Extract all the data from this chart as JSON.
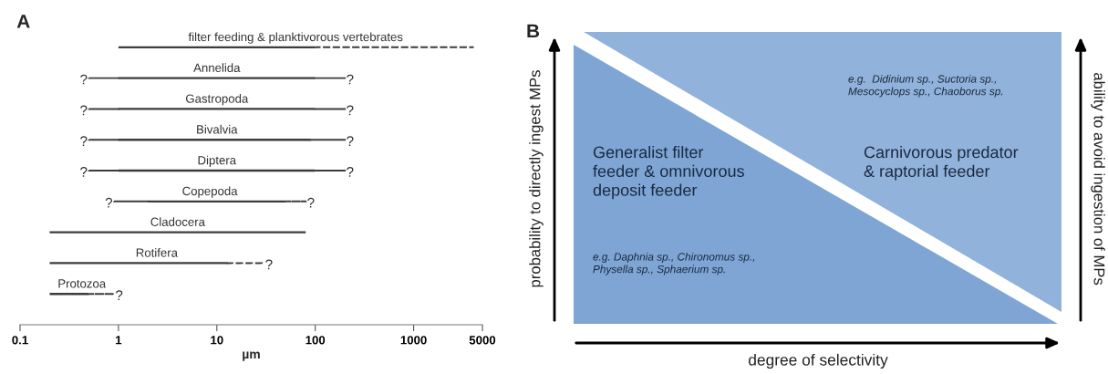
{
  "chart_data": [
    {
      "type": "bar",
      "title": "A",
      "orientation": "horizontal",
      "categories": [
        "filter feeding & planktivorous vertebrates",
        "Annelida",
        "Gastropoda",
        "Bivalvia",
        "Diptera",
        "Copepoda",
        "Cladocera",
        "Rotifera",
        "Protozoa"
      ],
      "xlabel": "µm",
      "log": "x",
      "xlim": [
        0.1,
        5000
      ],
      "xticks": [
        0.1,
        1,
        10,
        100,
        1000,
        5000
      ],
      "tick_labels": "x",
      "series": [
        {
          "color": "#3c3c3c",
          "line_style": "solid",
          "base": [
            1,
            1,
            1,
            1,
            1,
            2,
            0.2,
            0.2,
            0.2
          ],
          "values": [
            99,
            99,
            99,
            89,
            99,
            48,
            79.8,
            12.8,
            0.3
          ]
        },
        {
          "color": "#3c3c3c",
          "line_style": "dashed",
          "base": [
            null,
            0.5,
            0.5,
            0.5,
            0.5,
            0.9,
            null,
            null,
            null
          ],
          "values": [
            null,
            0.5,
            0.5,
            0.5,
            0.5,
            1.1,
            null,
            null,
            null
          ]
        },
        {
          "color": "#3c3c3c",
          "line_style": "dashed",
          "base": [
            100,
            100,
            100,
            90,
            100,
            50,
            null,
            13,
            0.5
          ],
          "values": [
            3900,
            100,
            100,
            110,
            100,
            30,
            null,
            17,
            0.4
          ]
        }
      ],
      "annotations": [
        "?",
        "?",
        "?",
        "?",
        "?",
        "?",
        "?",
        "?",
        "?",
        "?",
        "?",
        "?"
      ]
    },
    {
      "type": "other",
      "title": "B",
      "xlabel": "degree of selectivity",
      "ylabel": "probability to directly ingest MPs",
      "y2label": "ability to avoid ingestion of MPs",
      "annotations": [
        "Generalist filter\nfeeder & omnivorous\ndeposit feeder",
        "e.g. Daphnia sp., Chironomus sp.,\nPhysella sp., Sphaerium sp.",
        "Carnivorous predator\n& raptorial feeder",
        "e.g.  Didinium sp., Suctoria sp.,\nMesocyclops sp., Chaoborus sp."
      ]
    }
  ]
}
